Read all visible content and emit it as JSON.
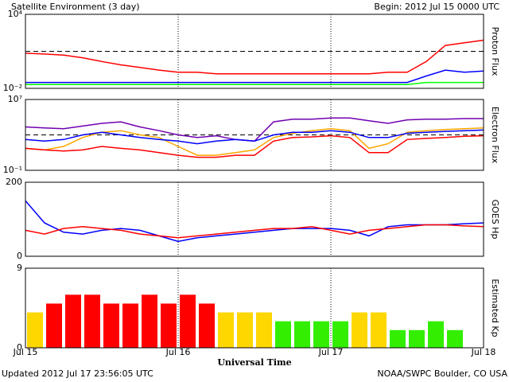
{
  "header": {
    "title": "Satellite Environment (3 day)",
    "begin": "Begin:  2012 Jul 15 0000 UTC"
  },
  "footer": {
    "updated": "Updated 2012 Jul 17 23:56:05 UTC",
    "source": "NOAA/SWPC Boulder, CO USA"
  },
  "x_axis": {
    "label": "Universal Time",
    "xlim": [
      0,
      72
    ],
    "xticks": [
      {
        "value": 0,
        "label": "Jul 15"
      },
      {
        "value": 24,
        "label": "Jul 16"
      },
      {
        "value": 48,
        "label": "Jul 17"
      },
      {
        "value": 72,
        "label": "Jul 18"
      }
    ],
    "x": [
      0,
      3,
      6,
      9,
      12,
      15,
      18,
      21,
      24,
      27,
      30,
      33,
      36,
      39,
      42,
      45,
      48,
      51,
      54,
      57,
      60,
      63,
      66,
      69,
      72
    ]
  },
  "chart_data": [
    {
      "type": "line",
      "ylabel": "Proton Flux",
      "log": true,
      "ylim": [
        0.01,
        10000
      ],
      "yticks": [
        {
          "value": 0.01,
          "label": "10⁻²"
        },
        {
          "value": 10000,
          "label": "10⁴"
        }
      ],
      "threshold": 10,
      "series": [
        {
          "color": "#ff0000",
          "values": [
            7,
            6,
            5,
            3,
            1.5,
            0.8,
            0.5,
            0.3,
            0.2,
            0.2,
            0.15,
            0.15,
            0.15,
            0.15,
            0.15,
            0.15,
            0.15,
            0.15,
            0.15,
            0.2,
            0.2,
            1.5,
            30,
            50,
            80
          ]
        },
        {
          "color": "#0000ff",
          "values": [
            0.03,
            0.03,
            0.03,
            0.03,
            0.03,
            0.03,
            0.03,
            0.03,
            0.03,
            0.03,
            0.03,
            0.03,
            0.03,
            0.03,
            0.03,
            0.03,
            0.03,
            0.03,
            0.03,
            0.03,
            0.03,
            0.1,
            0.3,
            0.2,
            0.25
          ]
        },
        {
          "color": "#00ff00",
          "values": [
            0.02,
            0.02,
            0.02,
            0.02,
            0.02,
            0.02,
            0.02,
            0.02,
            0.02,
            0.02,
            0.02,
            0.02,
            0.02,
            0.02,
            0.02,
            0.02,
            0.02,
            0.02,
            0.02,
            0.02,
            0.02,
            0.03,
            0.03,
            0.03,
            0.03
          ]
        }
      ]
    },
    {
      "type": "line",
      "ylabel": "Electron Flux",
      "log": true,
      "ylim": [
        0.1,
        10000000
      ],
      "yticks": [
        {
          "value": 0.1,
          "label": "10⁻¹"
        },
        {
          "value": 10000000,
          "label": "10⁷"
        }
      ],
      "threshold": 1000,
      "series": [
        {
          "color": "#7000b0",
          "values": [
            8000,
            6000,
            5000,
            10000,
            20000,
            30000,
            8000,
            3000,
            1000,
            500,
            800,
            300,
            200,
            30000,
            60000,
            60000,
            80000,
            80000,
            40000,
            20000,
            50000,
            60000,
            60000,
            70000,
            70000
          ]
        },
        {
          "color": "#ffa500",
          "values": [
            30,
            20,
            50,
            500,
            2000,
            3000,
            1000,
            500,
            50,
            5,
            5,
            10,
            20,
            500,
            1500,
            3000,
            5000,
            3000,
            30,
            100,
            2000,
            3000,
            4000,
            5000,
            6000
          ]
        },
        {
          "color": "#0000ff",
          "values": [
            300,
            200,
            300,
            1000,
            2000,
            1000,
            500,
            300,
            200,
            100,
            200,
            300,
            200,
            1000,
            2000,
            2000,
            3000,
            2000,
            500,
            500,
            1500,
            2000,
            2500,
            3000,
            3500
          ]
        },
        {
          "color": "#ff0000",
          "values": [
            30,
            20,
            15,
            20,
            50,
            30,
            20,
            10,
            5,
            3,
            3,
            5,
            5,
            200,
            500,
            600,
            800,
            500,
            10,
            10,
            300,
            400,
            500,
            700,
            800
          ]
        }
      ]
    },
    {
      "type": "line",
      "ylabel": "GOES Hp",
      "log": false,
      "ylim": [
        0,
        200
      ],
      "yticks": [
        0,
        200
      ],
      "series": [
        {
          "color": "#0000ff",
          "values": [
            150,
            90,
            65,
            60,
            70,
            75,
            70,
            55,
            40,
            50,
            55,
            60,
            65,
            70,
            75,
            75,
            75,
            70,
            55,
            80,
            85,
            85,
            85,
            88,
            90
          ]
        },
        {
          "color": "#ff0000",
          "values": [
            70,
            60,
            75,
            80,
            75,
            70,
            60,
            55,
            50,
            55,
            60,
            65,
            70,
            75,
            75,
            80,
            70,
            60,
            70,
            75,
            80,
            85,
            85,
            82,
            80
          ]
        }
      ]
    },
    {
      "type": "bar",
      "ylabel": "Estimated Kp",
      "log": false,
      "ylim": [
        0,
        9
      ],
      "yticks": [
        0,
        9
      ],
      "values": [
        4,
        5,
        6,
        6,
        5,
        5,
        6,
        5,
        6,
        5,
        4,
        4,
        4,
        3,
        3,
        3,
        3,
        4,
        4,
        2,
        2,
        3,
        2,
        null
      ],
      "colors": [
        "#ffd700",
        "#ff0000",
        "#ff0000",
        "#ff0000",
        "#ff0000",
        "#ff0000",
        "#ff0000",
        "#ff0000",
        "#ff0000",
        "#ff0000",
        "#ffd700",
        "#ffd700",
        "#ffd700",
        "#33ee00",
        "#33ee00",
        "#33ee00",
        "#33ee00",
        "#ffd700",
        "#ffd700",
        "#33ee00",
        "#33ee00",
        "#33ee00",
        "#33ee00",
        "#33ee00"
      ]
    }
  ]
}
